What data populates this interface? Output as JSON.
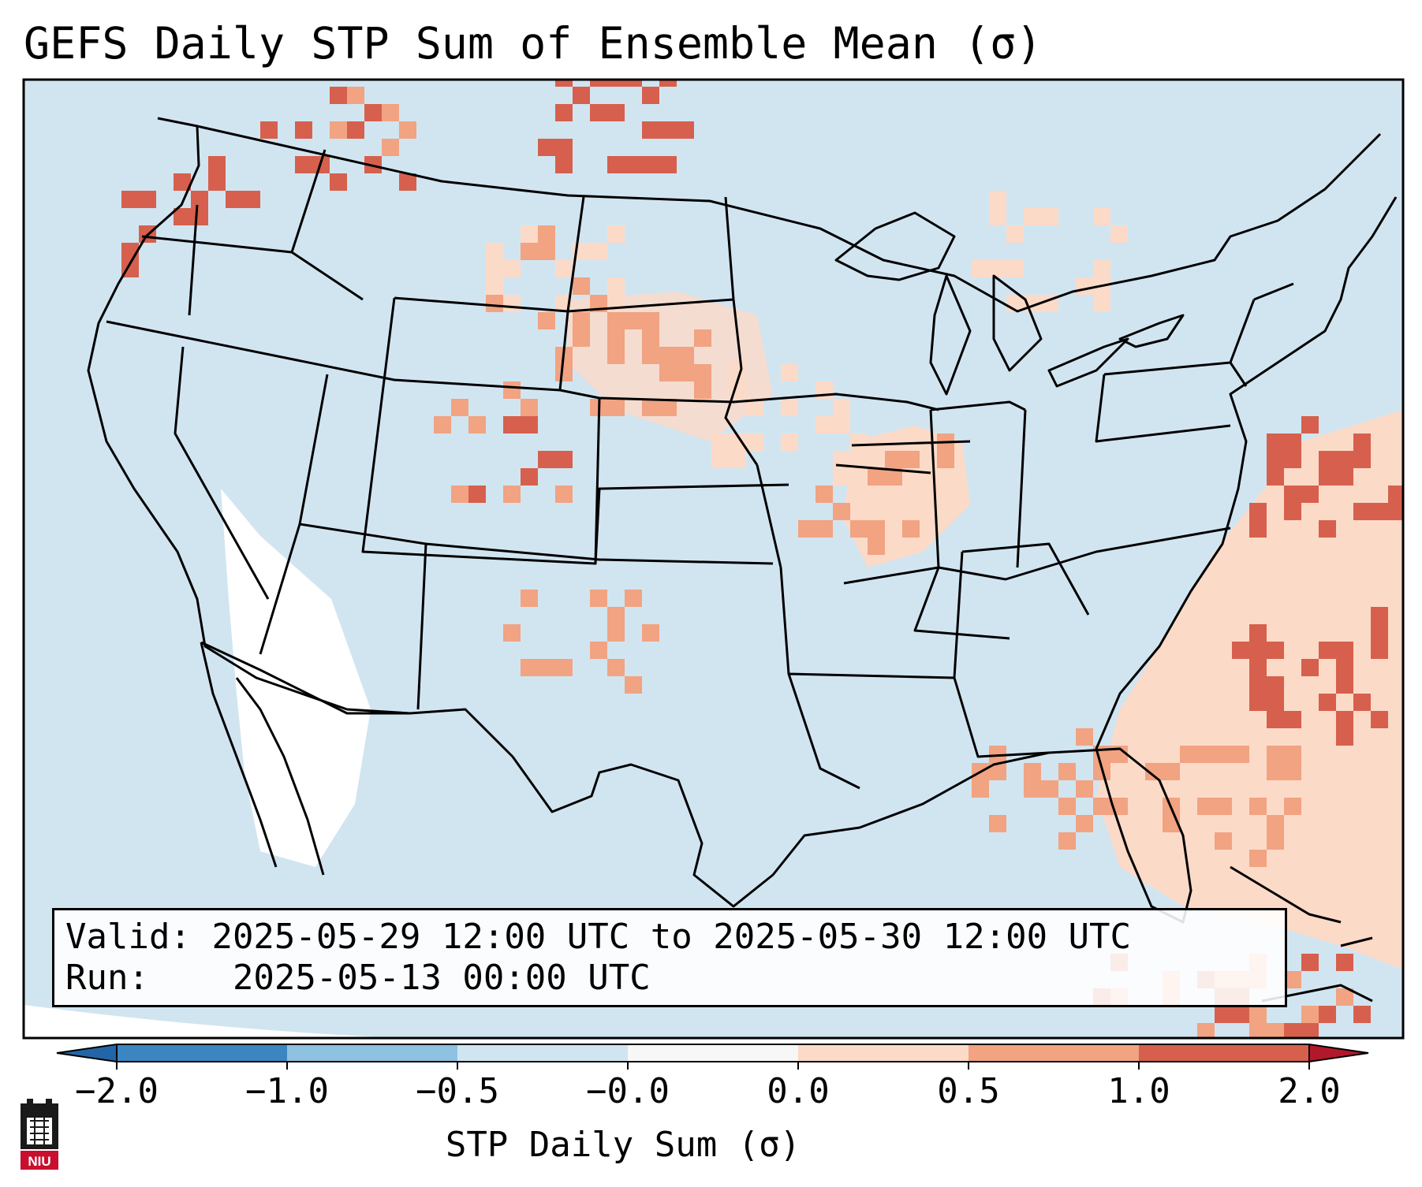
{
  "title": "GEFS Daily STP Sum of Ensemble Mean (σ)",
  "info": {
    "valid_label": "Valid:",
    "valid_value": "2025-05-29 12:00 UTC to 2025-05-30 12:00 UTC",
    "run_label": "Run:",
    "run_value": "2025-05-13 00:00 UTC"
  },
  "colorbar": {
    "label": "STP Daily Sum (σ)",
    "ticks": [
      "−2.0",
      "−1.0",
      "−0.5",
      "−0.0",
      "0.0",
      "0.5",
      "1.0",
      "2.0"
    ],
    "colors": [
      "#3b86c0",
      "#8fc1e0",
      "#d1e5f1",
      "#f7f7f7",
      "#fcdac8",
      "#f1a382",
      "#d6604d",
      "#b2182b"
    ],
    "under_color": "#2266a8",
    "over_color": "#a50f25"
  },
  "map": {
    "background_color": "#d1e5f1",
    "blank_color": "#ffffff",
    "state_line_color": "#000000"
  },
  "logo": {
    "text": "NIU",
    "color": "#c8102e"
  }
}
